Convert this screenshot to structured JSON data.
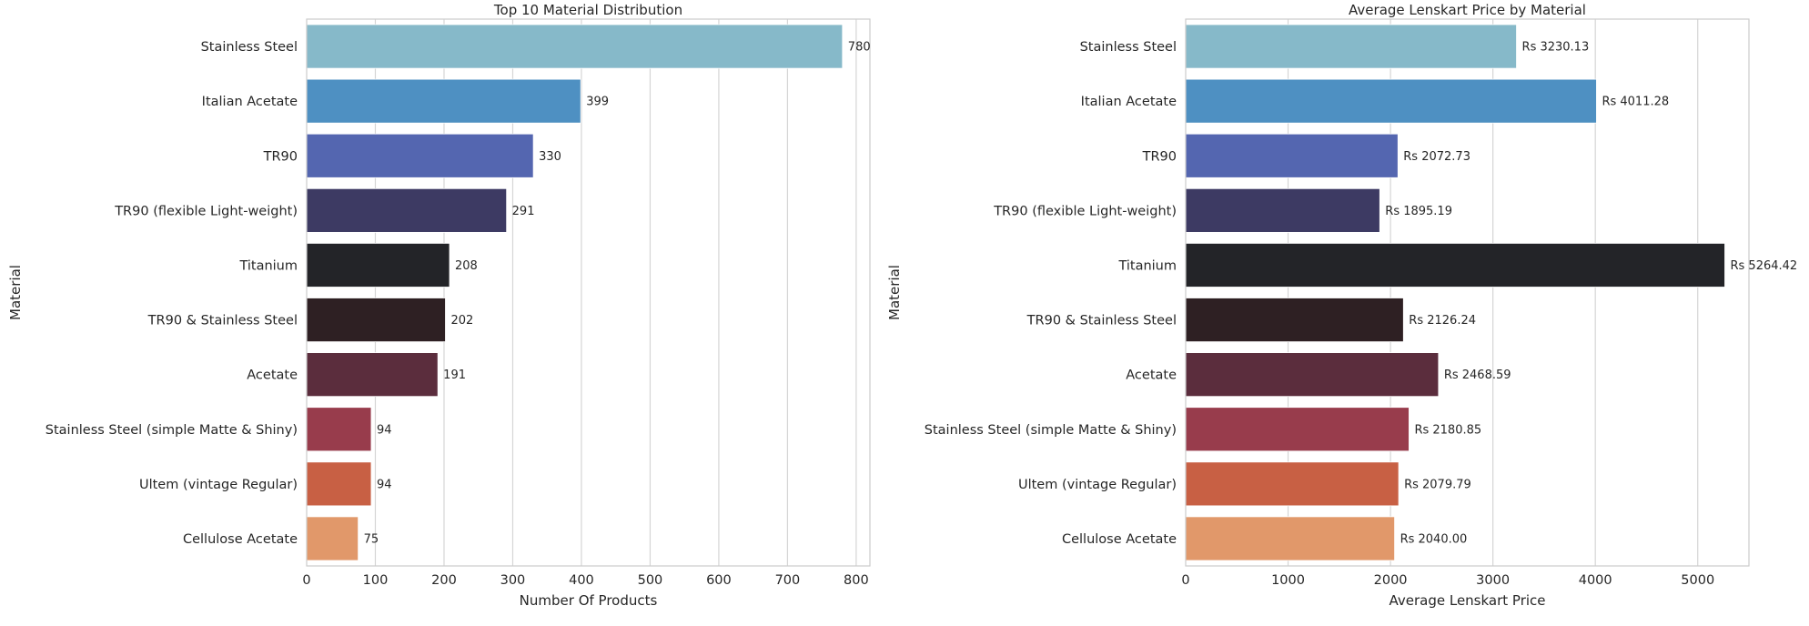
{
  "chart_data": [
    {
      "type": "bar",
      "orientation": "horizontal",
      "title": "Top 10 Material Distribution",
      "xlabel": "Number Of Products",
      "ylabel": "Material",
      "xlim": [
        0,
        820
      ],
      "xticks": [
        0,
        100,
        200,
        300,
        400,
        500,
        600,
        700,
        800
      ],
      "grid": "vertical",
      "categories": [
        "Stainless Steel",
        "Italian Acetate",
        "TR90",
        "TR90 (flexible Light-weight)",
        "Titanium",
        "TR90 & Stainless Steel",
        "Acetate",
        "Stainless Steel (simple Matte & Shiny)",
        "Ultem (vintage Regular)",
        "Cellulose Acetate"
      ],
      "values": [
        780,
        399,
        330,
        291,
        208,
        202,
        191,
        94,
        94,
        75
      ],
      "data_labels": [
        "780",
        "399",
        "330",
        "291",
        "208",
        "202",
        "191",
        "94",
        "94",
        "75"
      ]
    },
    {
      "type": "bar",
      "orientation": "horizontal",
      "title": "Average Lenskart Price by Material",
      "xlabel": "Average Lenskart Price",
      "ylabel": "Material",
      "xlim": [
        0,
        5500
      ],
      "xticks": [
        0,
        1000,
        2000,
        3000,
        4000,
        5000
      ],
      "grid": "vertical",
      "categories": [
        "Stainless Steel",
        "Italian Acetate",
        "TR90",
        "TR90 (flexible Light-weight)",
        "Titanium",
        "TR90 & Stainless Steel",
        "Acetate",
        "Stainless Steel (simple Matte & Shiny)",
        "Ultem (vintage Regular)",
        "Cellulose Acetate"
      ],
      "values": [
        3230.13,
        4011.28,
        2072.73,
        1895.19,
        5264.42,
        2126.24,
        2468.59,
        2180.85,
        2079.79,
        2040.0
      ],
      "data_labels": [
        "Rs 3230.13",
        "Rs 4011.28",
        "Rs 2072.73",
        "Rs 1895.19",
        "Rs 5264.42",
        "Rs 2126.24",
        "Rs 2468.59",
        "Rs 2180.85",
        "Rs 2079.79",
        "Rs 2040.00"
      ]
    }
  ],
  "palette": [
    "#86b9c9",
    "#4e90c2",
    "#5466b0",
    "#3d3a63",
    "#232428",
    "#2e2023",
    "#5b2d3d",
    "#983c4c",
    "#c86044",
    "#e1986a"
  ],
  "style": {
    "grid_color": "#d5d5d5",
    "frame_color": "#cccccc"
  }
}
